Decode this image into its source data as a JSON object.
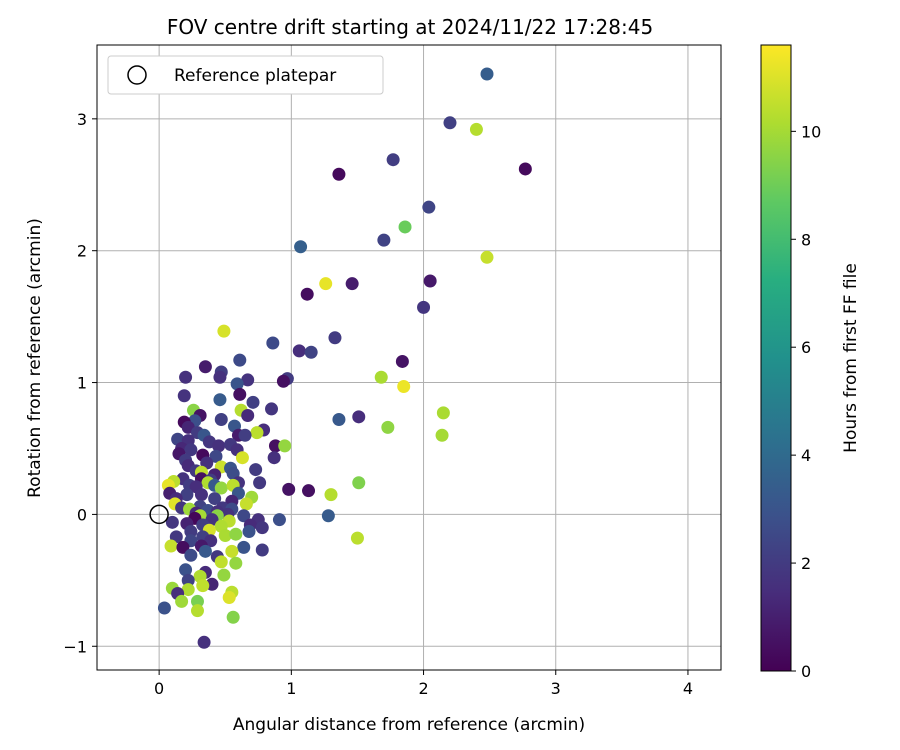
{
  "chart_data": {
    "type": "scatter",
    "title": "FOV centre drift starting at 2024/11/22 17:28:45",
    "xlabel": "Angular distance from reference (arcmin)",
    "ylabel": "Rotation from reference (arcmin)",
    "xlim": [
      -0.47,
      4.25
    ],
    "ylim": [
      -1.18,
      3.56
    ],
    "xticks": [
      0,
      1,
      2,
      3,
      4
    ],
    "yticks": [
      -1,
      0,
      1,
      2,
      3
    ],
    "grid": true,
    "legend": {
      "position": "upper-left",
      "entries": [
        "Reference platepar"
      ]
    },
    "reference_point": {
      "x": 0.0,
      "y": 0.0
    },
    "colorbar": {
      "label": "Hours from first FF file",
      "colormap": "viridis",
      "range": [
        0,
        11.6
      ],
      "ticks": [
        0,
        2,
        4,
        6,
        8,
        10
      ]
    },
    "points": [
      {
        "x": 2.48,
        "y": 3.34,
        "h": 3.4
      },
      {
        "x": 2.2,
        "y": 2.97,
        "h": 2.2
      },
      {
        "x": 2.4,
        "y": 2.92,
        "h": 10.3
      },
      {
        "x": 1.77,
        "y": 2.69,
        "h": 2.1
      },
      {
        "x": 2.77,
        "y": 2.62,
        "h": 0.3
      },
      {
        "x": 1.36,
        "y": 2.58,
        "h": 0.3
      },
      {
        "x": 2.04,
        "y": 2.33,
        "h": 2.4
      },
      {
        "x": 1.86,
        "y": 2.18,
        "h": 8.9
      },
      {
        "x": 1.7,
        "y": 2.08,
        "h": 2.3
      },
      {
        "x": 1.07,
        "y": 2.03,
        "h": 3.5
      },
      {
        "x": 2.48,
        "y": 1.95,
        "h": 10.6
      },
      {
        "x": 2.05,
        "y": 1.77,
        "h": 0.8
      },
      {
        "x": 1.26,
        "y": 1.75,
        "h": 11.2
      },
      {
        "x": 1.46,
        "y": 1.75,
        "h": 0.9
      },
      {
        "x": 1.12,
        "y": 1.67,
        "h": 0.4
      },
      {
        "x": 2.0,
        "y": 1.57,
        "h": 1.8
      },
      {
        "x": 0.49,
        "y": 1.39,
        "h": 10.9
      },
      {
        "x": 1.33,
        "y": 1.34,
        "h": 2.0
      },
      {
        "x": 0.86,
        "y": 1.3,
        "h": 2.6
      },
      {
        "x": 1.06,
        "y": 1.24,
        "h": 1.5
      },
      {
        "x": 1.15,
        "y": 1.23,
        "h": 2.3
      },
      {
        "x": 0.61,
        "y": 1.17,
        "h": 2.6
      },
      {
        "x": 1.84,
        "y": 1.16,
        "h": 0.6
      },
      {
        "x": 0.35,
        "y": 1.12,
        "h": 0.9
      },
      {
        "x": 0.47,
        "y": 1.08,
        "h": 2.1
      },
      {
        "x": 0.2,
        "y": 1.04,
        "h": 1.6
      },
      {
        "x": 0.97,
        "y": 1.03,
        "h": 2.0
      },
      {
        "x": 0.46,
        "y": 1.04,
        "h": 1.6
      },
      {
        "x": 0.67,
        "y": 1.02,
        "h": 1.7
      },
      {
        "x": 0.94,
        "y": 1.01,
        "h": 0.5
      },
      {
        "x": 1.68,
        "y": 1.04,
        "h": 10.1
      },
      {
        "x": 0.59,
        "y": 0.99,
        "h": 3.0
      },
      {
        "x": 1.85,
        "y": 0.97,
        "h": 11.3
      },
      {
        "x": 0.61,
        "y": 0.91,
        "h": 0.5
      },
      {
        "x": 0.19,
        "y": 0.9,
        "h": 1.7
      },
      {
        "x": 0.46,
        "y": 0.87,
        "h": 3.3
      },
      {
        "x": 0.71,
        "y": 0.85,
        "h": 2.2
      },
      {
        "x": 0.62,
        "y": 0.79,
        "h": 10.3
      },
      {
        "x": 0.85,
        "y": 0.8,
        "h": 1.8
      },
      {
        "x": 0.26,
        "y": 0.79,
        "h": 9.5
      },
      {
        "x": 0.31,
        "y": 0.75,
        "h": 0.6
      },
      {
        "x": 0.67,
        "y": 0.75,
        "h": 1.4
      },
      {
        "x": 2.15,
        "y": 0.77,
        "h": 10.1
      },
      {
        "x": 0.27,
        "y": 0.71,
        "h": 2.8
      },
      {
        "x": 0.47,
        "y": 0.72,
        "h": 2.2
      },
      {
        "x": 0.19,
        "y": 0.7,
        "h": 0.3
      },
      {
        "x": 1.36,
        "y": 0.72,
        "h": 3.2
      },
      {
        "x": 1.51,
        "y": 0.74,
        "h": 1.5
      },
      {
        "x": 0.57,
        "y": 0.67,
        "h": 3.1
      },
      {
        "x": 0.22,
        "y": 0.66,
        "h": 1.2
      },
      {
        "x": 0.79,
        "y": 0.64,
        "h": 1.5
      },
      {
        "x": 1.73,
        "y": 0.66,
        "h": 9.6
      },
      {
        "x": 0.29,
        "y": 0.62,
        "h": 2.0
      },
      {
        "x": 0.74,
        "y": 0.62,
        "h": 10.4
      },
      {
        "x": 0.34,
        "y": 0.6,
        "h": 3.1
      },
      {
        "x": 0.6,
        "y": 0.6,
        "h": 0.9
      },
      {
        "x": 0.65,
        "y": 0.6,
        "h": 2.1
      },
      {
        "x": 2.14,
        "y": 0.6,
        "h": 10.0
      },
      {
        "x": 0.14,
        "y": 0.57,
        "h": 2.4
      },
      {
        "x": 0.22,
        "y": 0.56,
        "h": 1.6
      },
      {
        "x": 0.38,
        "y": 0.55,
        "h": 1.8
      },
      {
        "x": 0.45,
        "y": 0.52,
        "h": 1.6
      },
      {
        "x": 0.54,
        "y": 0.53,
        "h": 1.9
      },
      {
        "x": 0.88,
        "y": 0.52,
        "h": 0.5
      },
      {
        "x": 0.95,
        "y": 0.52,
        "h": 9.7
      },
      {
        "x": 0.17,
        "y": 0.5,
        "h": 1.3
      },
      {
        "x": 0.24,
        "y": 0.49,
        "h": 1.9
      },
      {
        "x": 0.59,
        "y": 0.49,
        "h": 1.6
      },
      {
        "x": 0.15,
        "y": 0.46,
        "h": 0.7
      },
      {
        "x": 0.33,
        "y": 0.45,
        "h": 0.3
      },
      {
        "x": 0.43,
        "y": 0.44,
        "h": 2.5
      },
      {
        "x": 0.63,
        "y": 0.43,
        "h": 10.9
      },
      {
        "x": 0.87,
        "y": 0.43,
        "h": 1.6
      },
      {
        "x": 0.2,
        "y": 0.41,
        "h": 2.0
      },
      {
        "x": 0.36,
        "y": 0.39,
        "h": 1.6
      },
      {
        "x": 0.22,
        "y": 0.37,
        "h": 1.4
      },
      {
        "x": 0.47,
        "y": 0.36,
        "h": 10.7
      },
      {
        "x": 0.54,
        "y": 0.35,
        "h": 3.0
      },
      {
        "x": 0.73,
        "y": 0.34,
        "h": 2.0
      },
      {
        "x": 0.28,
        "y": 0.33,
        "h": 1.9
      },
      {
        "x": 0.32,
        "y": 0.32,
        "h": 10.5
      },
      {
        "x": 0.42,
        "y": 0.3,
        "h": 1.1
      },
      {
        "x": 0.56,
        "y": 0.31,
        "h": 2.7
      },
      {
        "x": 0.18,
        "y": 0.27,
        "h": 1.7
      },
      {
        "x": 0.32,
        "y": 0.27,
        "h": 0.5
      },
      {
        "x": 0.39,
        "y": 0.26,
        "h": 2.0
      },
      {
        "x": 0.11,
        "y": 0.25,
        "h": 10.4
      },
      {
        "x": 0.37,
        "y": 0.24,
        "h": 10.2
      },
      {
        "x": 0.6,
        "y": 0.24,
        "h": 1.7
      },
      {
        "x": 0.76,
        "y": 0.24,
        "h": 1.9
      },
      {
        "x": 1.51,
        "y": 0.24,
        "h": 9.3
      },
      {
        "x": 0.07,
        "y": 0.22,
        "h": 11.2
      },
      {
        "x": 0.23,
        "y": 0.22,
        "h": 2.1
      },
      {
        "x": 0.42,
        "y": 0.22,
        "h": 3.2
      },
      {
        "x": 0.28,
        "y": 0.21,
        "h": 1.5
      },
      {
        "x": 0.47,
        "y": 0.2,
        "h": 9.7
      },
      {
        "x": 0.56,
        "y": 0.22,
        "h": 10.4
      },
      {
        "x": 0.98,
        "y": 0.19,
        "h": 0.6
      },
      {
        "x": 1.13,
        "y": 0.18,
        "h": 0.5
      },
      {
        "x": 0.08,
        "y": 0.16,
        "h": 1.0
      },
      {
        "x": 0.21,
        "y": 0.15,
        "h": 2.2
      },
      {
        "x": 0.32,
        "y": 0.15,
        "h": 1.6
      },
      {
        "x": 0.6,
        "y": 0.16,
        "h": 3.1
      },
      {
        "x": 0.7,
        "y": 0.13,
        "h": 9.9
      },
      {
        "x": 1.3,
        "y": 0.15,
        "h": 10.3
      },
      {
        "x": 0.13,
        "y": 0.12,
        "h": 1.4
      },
      {
        "x": 0.42,
        "y": 0.12,
        "h": 2.2
      },
      {
        "x": 0.55,
        "y": 0.1,
        "h": 1.2
      },
      {
        "x": 0.66,
        "y": 0.08,
        "h": 10.6
      },
      {
        "x": 0.12,
        "y": 0.08,
        "h": 11.1
      },
      {
        "x": 0.17,
        "y": 0.05,
        "h": 1.8
      },
      {
        "x": 0.31,
        "y": 0.06,
        "h": 2.3
      },
      {
        "x": 0.48,
        "y": 0.05,
        "h": 1.9
      },
      {
        "x": 0.55,
        "y": 0.04,
        "h": 2.6
      },
      {
        "x": 0.23,
        "y": 0.04,
        "h": 9.9
      },
      {
        "x": 0.37,
        "y": 0.03,
        "h": 2.7
      },
      {
        "x": 0.44,
        "y": 0.02,
        "h": 1.6
      },
      {
        "x": 0.28,
        "y": 0.01,
        "h": 1.3
      },
      {
        "x": 0.52,
        "y": 0.0,
        "h": 1.7
      },
      {
        "x": 0.31,
        "y": -0.01,
        "h": 10.0
      },
      {
        "x": 0.44,
        "y": -0.01,
        "h": 9.5
      },
      {
        "x": 0.64,
        "y": -0.01,
        "h": 2.5
      },
      {
        "x": 1.28,
        "y": -0.01,
        "h": 3.3
      },
      {
        "x": 0.27,
        "y": -0.03,
        "h": 0.2
      },
      {
        "x": 0.4,
        "y": -0.04,
        "h": 1.7
      },
      {
        "x": 0.53,
        "y": -0.05,
        "h": 10.4
      },
      {
        "x": 0.75,
        "y": -0.04,
        "h": 1.6
      },
      {
        "x": 0.91,
        "y": -0.04,
        "h": 2.8
      },
      {
        "x": 0.1,
        "y": -0.06,
        "h": 1.8
      },
      {
        "x": 0.21,
        "y": -0.07,
        "h": 1.1
      },
      {
        "x": 0.33,
        "y": -0.08,
        "h": 2.1
      },
      {
        "x": 0.69,
        "y": -0.08,
        "h": 1.4
      },
      {
        "x": 0.47,
        "y": -0.09,
        "h": 10.2
      },
      {
        "x": 0.78,
        "y": -0.1,
        "h": 1.8
      },
      {
        "x": 0.24,
        "y": -0.13,
        "h": 2.0
      },
      {
        "x": 0.38,
        "y": -0.12,
        "h": 10.9
      },
      {
        "x": 0.68,
        "y": -0.13,
        "h": 2.9
      },
      {
        "x": 0.13,
        "y": -0.17,
        "h": 1.9
      },
      {
        "x": 0.33,
        "y": -0.17,
        "h": 2.2
      },
      {
        "x": 0.5,
        "y": -0.16,
        "h": 10.1
      },
      {
        "x": 0.58,
        "y": -0.15,
        "h": 9.6
      },
      {
        "x": 1.5,
        "y": -0.18,
        "h": 10.4
      },
      {
        "x": 0.24,
        "y": -0.2,
        "h": 2.4
      },
      {
        "x": 0.39,
        "y": -0.2,
        "h": 1.6
      },
      {
        "x": 0.09,
        "y": -0.24,
        "h": 10.6
      },
      {
        "x": 0.18,
        "y": -0.25,
        "h": 0.4
      },
      {
        "x": 0.32,
        "y": -0.24,
        "h": 0.8
      },
      {
        "x": 0.64,
        "y": -0.25,
        "h": 3.0
      },
      {
        "x": 0.78,
        "y": -0.27,
        "h": 2.0
      },
      {
        "x": 0.35,
        "y": -0.28,
        "h": 3.2
      },
      {
        "x": 0.55,
        "y": -0.28,
        "h": 10.6
      },
      {
        "x": 0.24,
        "y": -0.31,
        "h": 2.6
      },
      {
        "x": 0.44,
        "y": -0.32,
        "h": 1.9
      },
      {
        "x": 0.47,
        "y": -0.36,
        "h": 10.5
      },
      {
        "x": 0.58,
        "y": -0.37,
        "h": 9.7
      },
      {
        "x": 0.2,
        "y": -0.42,
        "h": 2.9
      },
      {
        "x": 0.35,
        "y": -0.44,
        "h": 1.4
      },
      {
        "x": 0.49,
        "y": -0.46,
        "h": 9.7
      },
      {
        "x": 0.31,
        "y": -0.47,
        "h": 10.2
      },
      {
        "x": 0.22,
        "y": -0.5,
        "h": 2.3
      },
      {
        "x": 0.4,
        "y": -0.53,
        "h": 1.2
      },
      {
        "x": 0.33,
        "y": -0.54,
        "h": 10.5
      },
      {
        "x": 0.1,
        "y": -0.56,
        "h": 9.8
      },
      {
        "x": 0.22,
        "y": -0.57,
        "h": 10.2
      },
      {
        "x": 0.55,
        "y": -0.59,
        "h": 10.4
      },
      {
        "x": 0.14,
        "y": -0.6,
        "h": 1.5
      },
      {
        "x": 0.53,
        "y": -0.63,
        "h": 11.0
      },
      {
        "x": 0.17,
        "y": -0.66,
        "h": 9.9
      },
      {
        "x": 0.29,
        "y": -0.66,
        "h": 9.2
      },
      {
        "x": 0.04,
        "y": -0.71,
        "h": 2.9
      },
      {
        "x": 0.29,
        "y": -0.73,
        "h": 10.3
      },
      {
        "x": 0.56,
        "y": -0.78,
        "h": 9.4
      },
      {
        "x": 0.34,
        "y": -0.97,
        "h": 1.6
      }
    ]
  }
}
